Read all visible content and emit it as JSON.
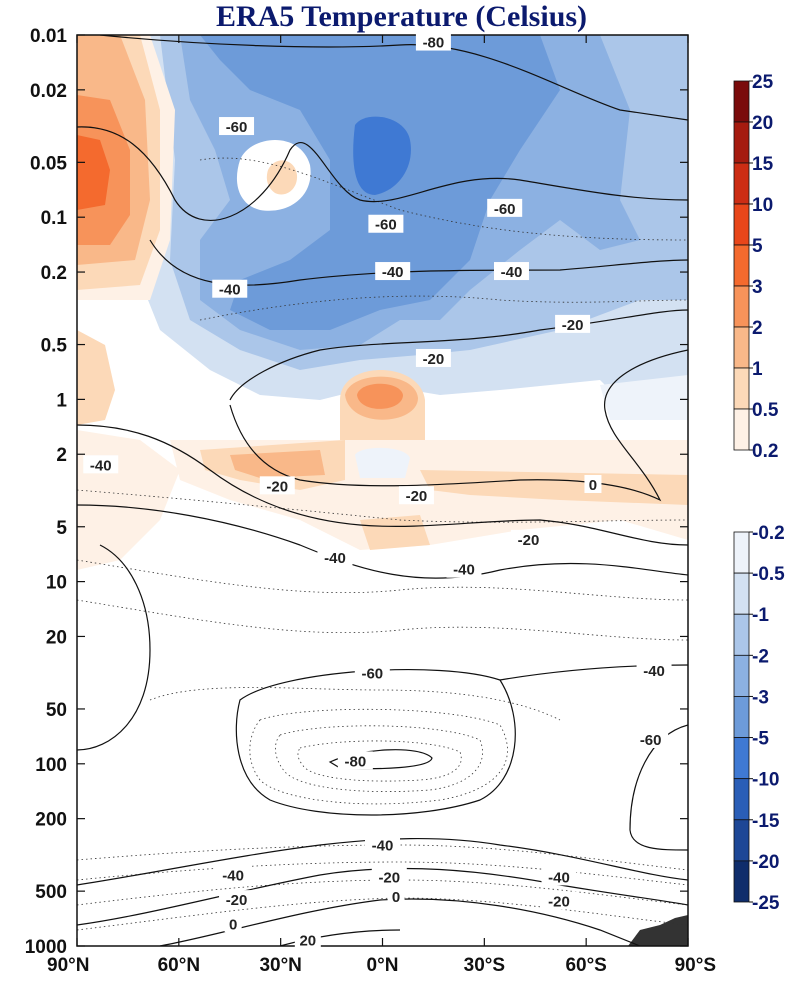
{
  "chart_data": {
    "type": "contour",
    "title": "ERA5 Temperature (Celsius)",
    "xlabel": "",
    "ylabel": "",
    "x_ticks": [
      "90°N",
      "60°N",
      "30°N",
      "0°N",
      "30°S",
      "60°S",
      "90°S"
    ],
    "y_ticks": [
      "0.01",
      "0.02",
      "0.05",
      "0.1",
      "0.2",
      "0.5",
      "1",
      "2",
      "5",
      "10",
      "20",
      "50",
      "100",
      "200",
      "500",
      "1000"
    ],
    "y_scale": "log",
    "y_inverted": true,
    "positive_colorbar": {
      "levels": [
        "25",
        "20",
        "15",
        "10",
        "5",
        "3",
        "2",
        "1",
        "0.5",
        "0.2"
      ],
      "colors": [
        "#7a0b0b",
        "#a51b0f",
        "#cc2d14",
        "#e8461a",
        "#f46a2e",
        "#f7935a",
        "#f9b889",
        "#fcd9b8",
        "#fef1e6"
      ]
    },
    "negative_colorbar": {
      "levels": [
        "-0.2",
        "-0.5",
        "-1",
        "-2",
        "-3",
        "-5",
        "-10",
        "-15",
        "-20",
        "-25"
      ],
      "colors": [
        "#eef3fa",
        "#d3e1f2",
        "#abc6e9",
        "#8cb1e2",
        "#6d9bd9",
        "#3f79d3",
        "#2a5eb7",
        "#1d4796",
        "#0f2d6b"
      ]
    },
    "contour_labels": [
      {
        "value": "-80",
        "lat": -15,
        "p": 0.011
      },
      {
        "value": "-60",
        "lat": 43,
        "p": 0.032
      },
      {
        "value": "-60",
        "lat": -1,
        "p": 0.11
      },
      {
        "value": "-60",
        "lat": -36,
        "p": 0.09
      },
      {
        "value": "-40",
        "lat": 45,
        "p": 0.25
      },
      {
        "value": "-40",
        "lat": -3,
        "p": 0.2
      },
      {
        "value": "-40",
        "lat": -38,
        "p": 0.2
      },
      {
        "value": "-20",
        "lat": -56,
        "p": 0.39
      },
      {
        "value": "-20",
        "lat": -15,
        "p": 0.6
      },
      {
        "value": "-40",
        "lat": 83,
        "p": 2.3
      },
      {
        "value": "-20",
        "lat": 31,
        "p": 3.0
      },
      {
        "value": "-20",
        "lat": -10,
        "p": 3.4
      },
      {
        "value": "0",
        "lat": -62,
        "p": 2.95
      },
      {
        "value": "-20",
        "lat": -43,
        "p": 5.9
      },
      {
        "value": "-40",
        "lat": 14,
        "p": 7.4
      },
      {
        "value": "-40",
        "lat": -24,
        "p": 8.6
      },
      {
        "value": "-60",
        "lat": 3,
        "p": 32
      },
      {
        "value": "-40",
        "lat": -80,
        "p": 31
      },
      {
        "value": "-80",
        "lat": 8,
        "p": 97
      },
      {
        "value": "-60",
        "lat": -79,
        "p": 74
      },
      {
        "value": "-40",
        "lat": 0,
        "p": 280
      },
      {
        "value": "-40",
        "lat": 44,
        "p": 410
      },
      {
        "value": "-20",
        "lat": 43,
        "p": 560
      },
      {
        "value": "-20",
        "lat": -2,
        "p": 420
      },
      {
        "value": "0",
        "lat": -4,
        "p": 540
      },
      {
        "value": "-40",
        "lat": -52,
        "p": 420
      },
      {
        "value": "-20",
        "lat": -52,
        "p": 570
      },
      {
        "value": "0",
        "lat": 44,
        "p": 760
      },
      {
        "value": "20",
        "lat": 22,
        "p": 930
      }
    ]
  }
}
